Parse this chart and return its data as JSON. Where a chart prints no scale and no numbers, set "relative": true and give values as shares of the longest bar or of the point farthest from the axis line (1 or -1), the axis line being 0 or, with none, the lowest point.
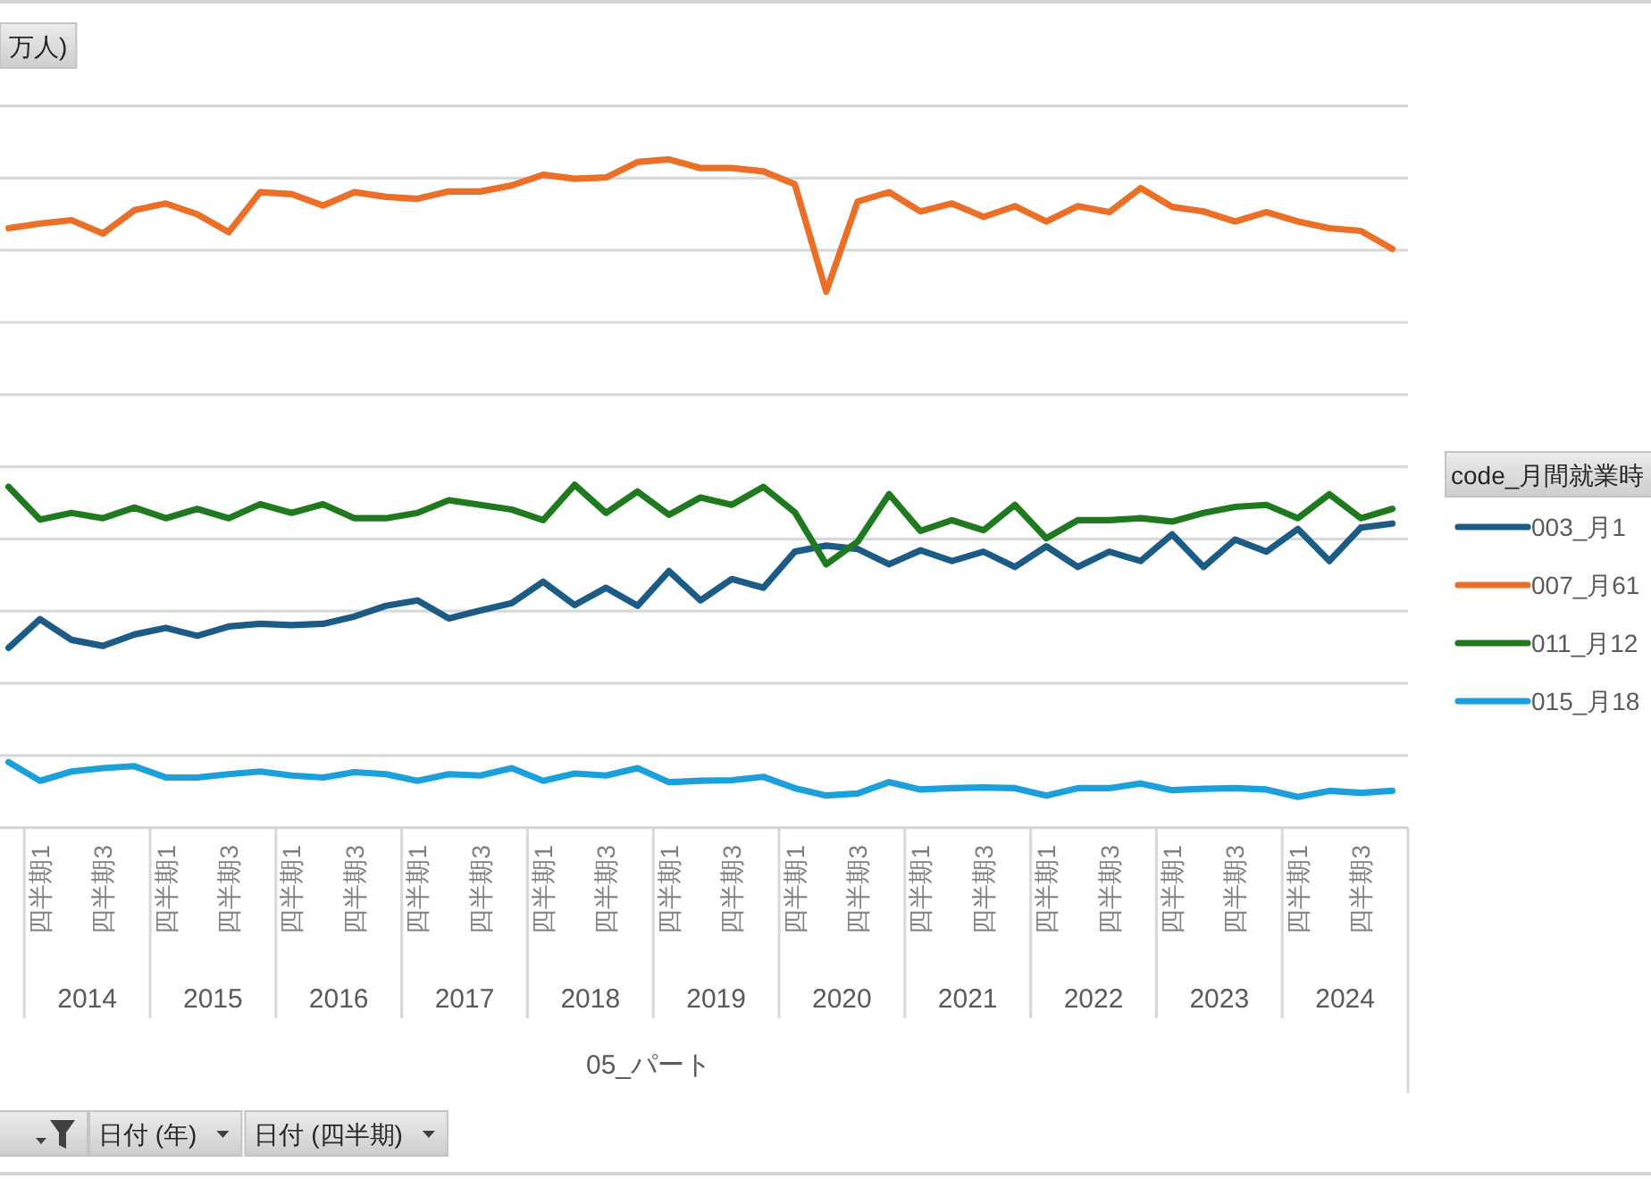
{
  "chart_data": {
    "type": "line",
    "relative": true,
    "ylabel": "万人)",
    "xlabel": "05_パート",
    "legend_title": "code_月間就業時",
    "legend": "right",
    "grid": "y",
    "categories": [
      null,
      "四半期1",
      null,
      "四半期3",
      null,
      "四半期1",
      null,
      "四半期3",
      null,
      "四半期1",
      null,
      "四半期3",
      null,
      "四半期1",
      null,
      "四半期3",
      null,
      "四半期1",
      null,
      "四半期3",
      null,
      "四半期1",
      null,
      "四半期3",
      null,
      "四半期1",
      null,
      "四半期3",
      null,
      "四半期1",
      null,
      "四半期3",
      null,
      "四半期1",
      null,
      "四半期3",
      null,
      "四半期1",
      null,
      "四半期3",
      null,
      "四半期1",
      null,
      "四半期3",
      null
    ],
    "annotations": [
      "2014",
      "2015",
      "2016",
      "2017",
      "2018",
      "2019",
      "2020",
      "2021",
      "2022",
      "2023",
      "2024",
      "日付 (年)",
      "日付 (四半期)"
    ],
    "series": [
      {
        "name": "003_月1",
        "color": "#1c5b86",
        "values": [
          0.269,
          0.312,
          0.281,
          0.272,
          0.289,
          0.299,
          0.287,
          0.301,
          0.305,
          0.303,
          0.305,
          0.316,
          0.332,
          0.34,
          0.313,
          0.325,
          0.336,
          0.368,
          0.333,
          0.359,
          0.332,
          0.384,
          0.34,
          0.372,
          0.359,
          0.413,
          0.422,
          0.417,
          0.394,
          0.415,
          0.399,
          0.413,
          0.39,
          0.421,
          0.39,
          0.413,
          0.399,
          0.439,
          0.39,
          0.431,
          0.413,
          0.447,
          0.399,
          0.449,
          0.455
        ]
      },
      {
        "name": "007_月61",
        "color": "#ec6f28",
        "values": [
          0.897,
          0.904,
          0.909,
          0.889,
          0.924,
          0.934,
          0.918,
          0.891,
          0.951,
          0.948,
          0.931,
          0.951,
          0.944,
          0.941,
          0.952,
          0.952,
          0.961,
          0.977,
          0.971,
          0.973,
          0.996,
          1,
          0.987,
          0.987,
          0.982,
          0.963,
          0.802,
          0.937,
          0.951,
          0.922,
          0.934,
          0.914,
          0.93,
          0.907,
          0.93,
          0.921,
          0.957,
          0.929,
          0.922,
          0.907,
          0.921,
          0.907,
          0.897,
          0.893,
          0.866
        ]
      },
      {
        "name": "011_月12",
        "color": "#1f7a1f",
        "values": [
          0.51,
          0.461,
          0.471,
          0.463,
          0.479,
          0.463,
          0.477,
          0.463,
          0.484,
          0.471,
          0.484,
          0.463,
          0.463,
          0.471,
          0.49,
          0.483,
          0.476,
          0.46,
          0.513,
          0.471,
          0.503,
          0.468,
          0.494,
          0.483,
          0.51,
          0.472,
          0.394,
          0.428,
          0.499,
          0.444,
          0.46,
          0.445,
          0.483,
          0.433,
          0.46,
          0.46,
          0.463,
          0.458,
          0.471,
          0.48,
          0.483,
          0.463,
          0.499,
          0.463,
          0.477
        ]
      },
      {
        "name": "015_月18",
        "color": "#1ba0dc",
        "values": [
          0.098,
          0.07,
          0.084,
          0.089,
          0.092,
          0.075,
          0.075,
          0.08,
          0.084,
          0.078,
          0.075,
          0.083,
          0.08,
          0.07,
          0.08,
          0.078,
          0.089,
          0.07,
          0.081,
          0.078,
          0.089,
          0.068,
          0.07,
          0.071,
          0.076,
          0.059,
          0.048,
          0.051,
          0.068,
          0.057,
          0.059,
          0.06,
          0.059,
          0.048,
          0.059,
          0.059,
          0.066,
          0.056,
          0.058,
          0.059,
          0.057,
          0.046,
          0.055,
          0.052,
          0.055
        ]
      }
    ]
  }
}
